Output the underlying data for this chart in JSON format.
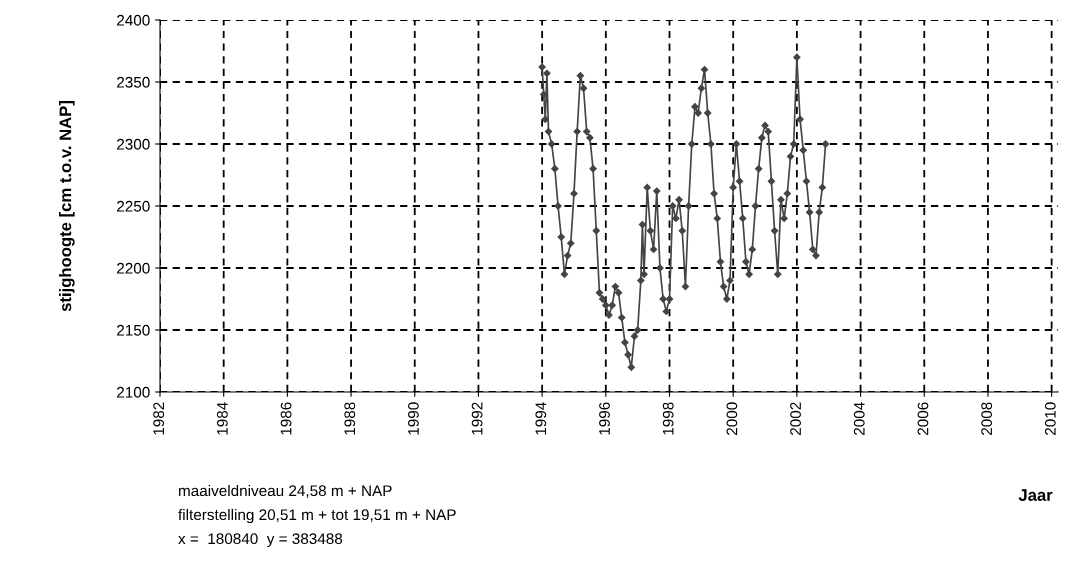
{
  "chart_data": {
    "type": "line",
    "xlabel": "Jaar",
    "ylabel": "stijghoogte [cm t.o.v. NAP]",
    "x": [
      1994.0,
      1994.05,
      1994.1,
      1994.15,
      1994.2,
      1994.3,
      1994.4,
      1994.5,
      1994.6,
      1994.7,
      1994.8,
      1994.9,
      1995.0,
      1995.1,
      1995.2,
      1995.3,
      1995.4,
      1995.5,
      1995.6,
      1995.7,
      1995.8,
      1995.9,
      1996.0,
      1996.1,
      1996.2,
      1996.3,
      1996.4,
      1996.5,
      1996.6,
      1996.7,
      1996.8,
      1996.9,
      1997.0,
      1997.1,
      1997.15,
      1997.2,
      1997.3,
      1997.4,
      1997.5,
      1997.6,
      1997.7,
      1997.8,
      1997.9,
      1998.0,
      1998.1,
      1998.2,
      1998.3,
      1998.4,
      1998.5,
      1998.6,
      1998.7,
      1998.8,
      1998.9,
      1999.0,
      1999.1,
      1999.2,
      1999.3,
      1999.4,
      1999.5,
      1999.6,
      1999.7,
      1999.8,
      1999.9,
      2000.0,
      2000.1,
      2000.2,
      2000.3,
      2000.4,
      2000.5,
      2000.6,
      2000.7,
      2000.8,
      2000.9,
      2001.0,
      2001.1,
      2001.2,
      2001.3,
      2001.4,
      2001.5,
      2001.6,
      2001.7,
      2001.8,
      2001.9,
      2002.0,
      2002.1,
      2002.2,
      2002.3,
      2002.4,
      2002.5,
      2002.6,
      2002.7,
      2002.8,
      2002.9
    ],
    "series": [
      {
        "color": "#444444",
        "values": [
          2362,
          2340,
          2320,
          2357,
          2310,
          2300,
          2280,
          2250,
          2225,
          2195,
          2210,
          2220,
          2260,
          2310,
          2355,
          2345,
          2310,
          2305,
          2280,
          2230,
          2180,
          2175,
          2170,
          2162,
          2170,
          2185,
          2180,
          2160,
          2140,
          2130,
          2120,
          2145,
          2150,
          2190,
          2235,
          2195,
          2265,
          2230,
          2215,
          2262,
          2200,
          2175,
          2165,
          2175,
          2250,
          2240,
          2255,
          2230,
          2185,
          2250,
          2300,
          2330,
          2325,
          2345,
          2360,
          2325,
          2300,
          2260,
          2240,
          2205,
          2185,
          2175,
          2190,
          2265,
          2300,
          2270,
          2240,
          2205,
          2195,
          2215,
          2250,
          2280,
          2305,
          2315,
          2310,
          2270,
          2230,
          2195,
          2255,
          2240,
          2260,
          2290,
          2300,
          2370,
          2320,
          2295,
          2270,
          2245,
          2215,
          2210,
          2245,
          2265,
          2300
        ]
      }
    ],
    "xlim": [
      1982,
      2010.2
    ],
    "xticks": [
      1982,
      1984,
      1986,
      1988,
      1990,
      1992,
      1994,
      1996,
      1998,
      2000,
      2002,
      2004,
      2006,
      2008,
      2010
    ],
    "ylim": [
      2100,
      2400
    ],
    "yticks": [
      2100,
      2150,
      2200,
      2250,
      2300,
      2350,
      2400
    ],
    "grid": true,
    "marker": "diamond",
    "line_style": "solid",
    "annotations": [
      "maaiveldniveau 24,58 m + NAP",
      "filterstelling 20,51 m + tot 19,51 m + NAP",
      "x =  180840  y = 383488"
    ]
  }
}
